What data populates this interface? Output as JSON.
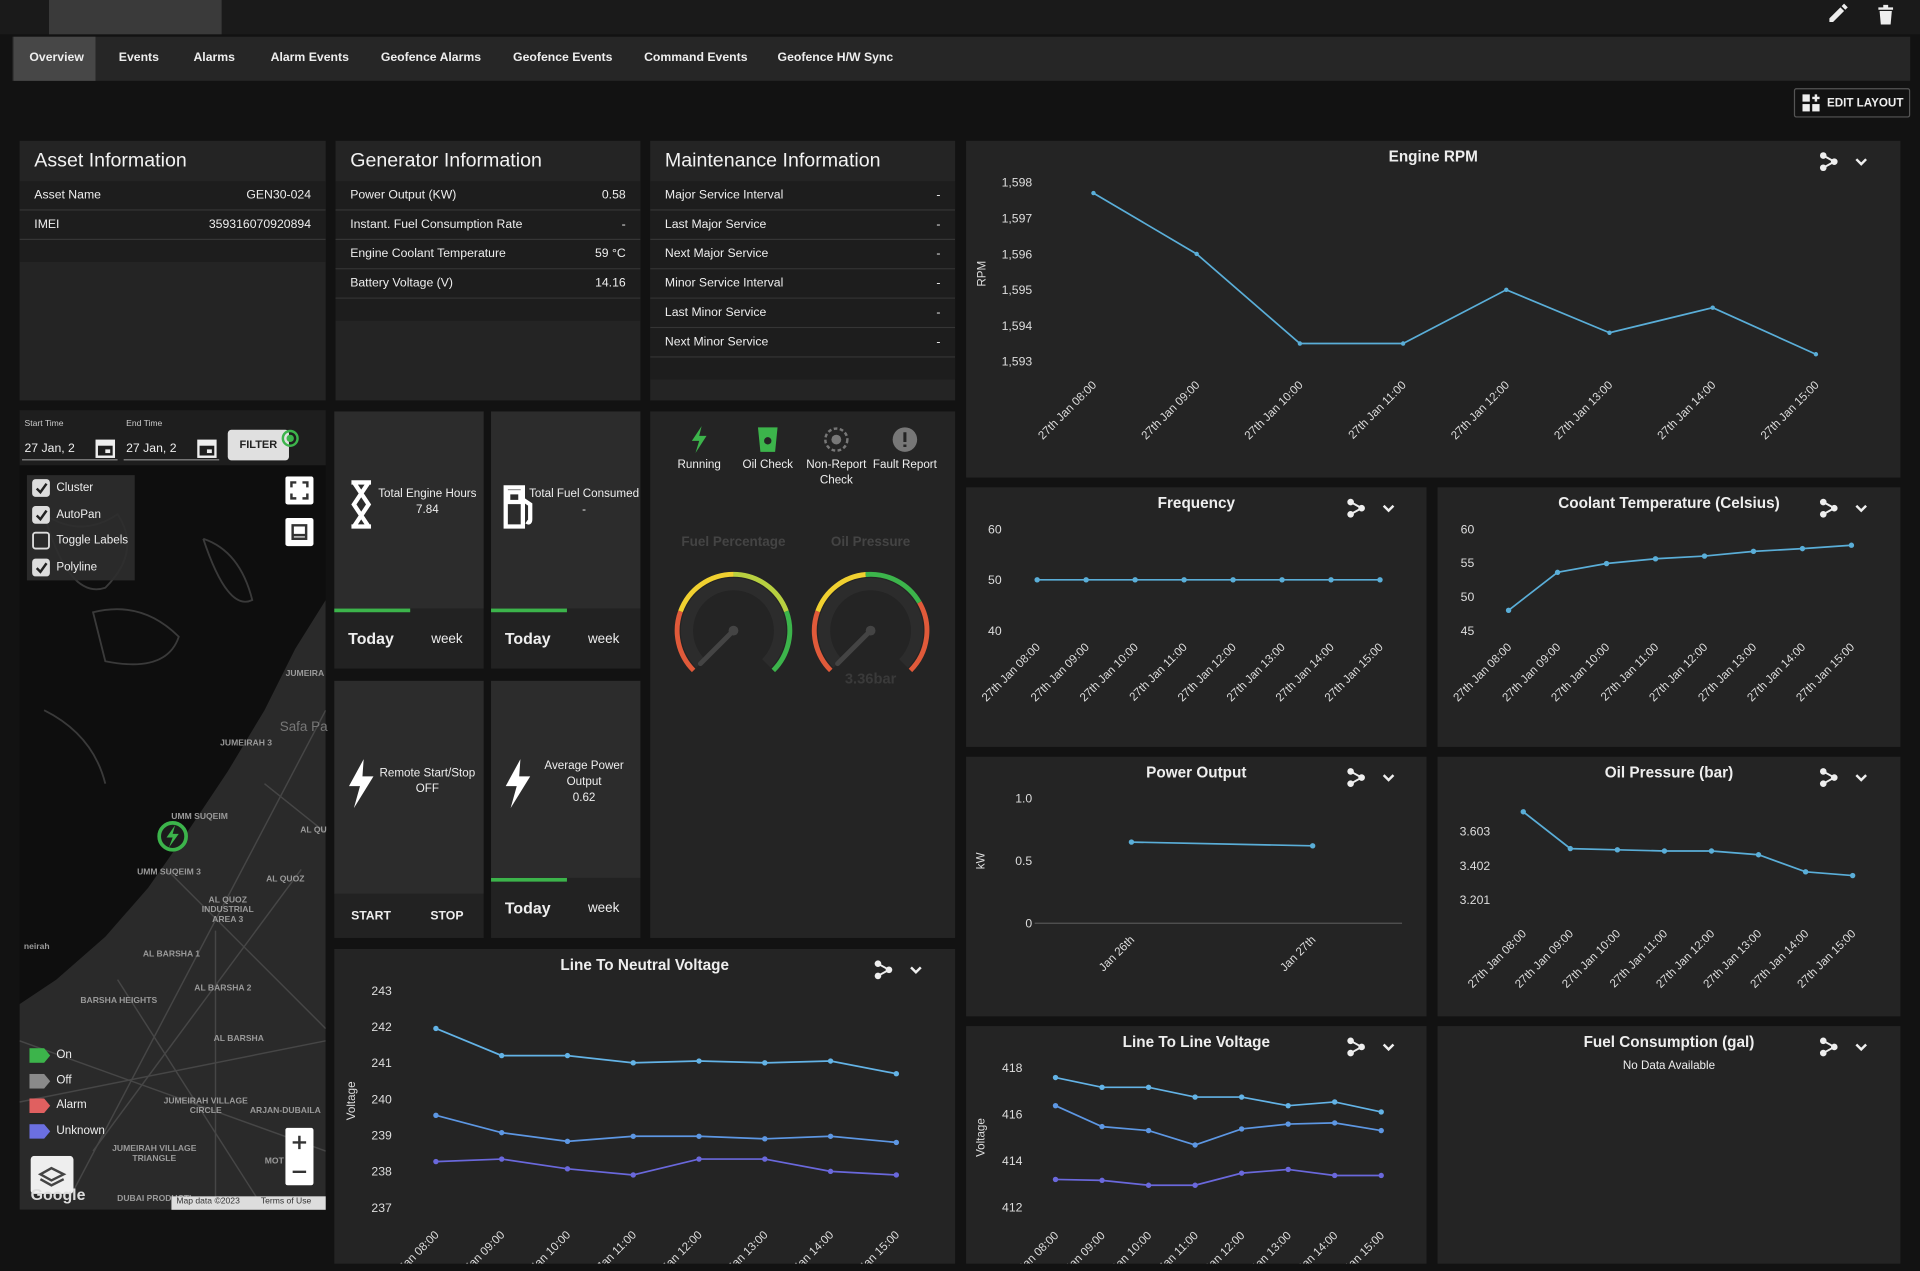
{
  "top_tabs": [
    "Overview",
    "Events",
    "Alarms",
    "Alarm Events",
    "Geofence Alarms",
    "Geofence Events",
    "Command Events",
    "Geofence H/W Sync"
  ],
  "edit_layout": "EDIT LAYOUT",
  "asset_info": {
    "title": "Asset Information",
    "rows": [
      [
        "Asset Name",
        "GEN30-024"
      ],
      [
        "IMEI",
        "359316070920894"
      ]
    ]
  },
  "generator_info": {
    "title": "Generator Information",
    "rows": [
      [
        "Power Output (KW)",
        0.58
      ],
      [
        "Instant. Fuel Consumption Rate",
        "-"
      ],
      [
        "Engine Coolant Temperature",
        "59 °C"
      ],
      [
        "Battery Voltage (V)",
        14.16
      ]
    ]
  },
  "maintenance_info": {
    "title": "Maintenance Information",
    "rows": [
      [
        "Major Service Interval",
        "-"
      ],
      [
        "Last Major Service",
        "-"
      ],
      [
        "Next Major Service",
        "-"
      ],
      [
        "Minor Service Interval",
        "-"
      ],
      [
        "Last Minor Service",
        "-"
      ],
      [
        "Next Minor Service",
        "-"
      ]
    ]
  },
  "map": {
    "start_label": "Start Time",
    "start_value": "27 Jan, 2",
    "end_label": "End Time",
    "end_value": "27 Jan, 2",
    "filter": "FILTER",
    "layers": [
      {
        "label": "Cluster",
        "checked": true
      },
      {
        "label": "AutoPan",
        "checked": true
      },
      {
        "label": "Toggle Labels",
        "checked": false
      },
      {
        "label": "Polyline",
        "checked": true
      }
    ],
    "places": [
      "JUMEIRA",
      "Safa Pa",
      "JUMEIRAH 3",
      "UMM SUQEIM",
      "AL QU",
      "UMM SUQEIM 3",
      "AL QUOZ",
      "AL QUOZ INDUSTRIAL AREA 3",
      "AL BARSHA 1",
      "AL BARSHA 2",
      "BARSHA HEIGHTS",
      "AL BARSHA",
      "neirah",
      "JUMEIRAH VILLAGE CIRCLE",
      "ARJAN-DUBAILA",
      "JUMEIRAH VILLAGE TRIANGLE",
      "MOT",
      "DUBAI PRODUCTI"
    ],
    "legend": [
      {
        "label": "On",
        "color": "#3cb44b"
      },
      {
        "label": "Off",
        "color": "#8a8a8a"
      },
      {
        "label": "Alarm",
        "color": "#e06060"
      },
      {
        "label": "Unknown",
        "color": "#6b6fe0"
      }
    ],
    "logo": "Google",
    "attribution": "Map data ©2023",
    "terms": "Terms of Use"
  },
  "tiles": [
    {
      "label": "Total Engine Hours",
      "value": 7.84,
      "options": [
        "Today",
        "week"
      ],
      "selected": 0
    },
    {
      "label": "Total Fuel Consumed",
      "value": "-",
      "options": [
        "Today",
        "week"
      ],
      "selected": 0
    },
    {
      "label": "Remote Start/Stop",
      "value": "OFF",
      "options": [
        "START",
        "STOP"
      ]
    },
    {
      "label": "Average Power Output",
      "value": 0.62,
      "options": [
        "Today",
        "week"
      ],
      "selected": 0
    }
  ],
  "status": {
    "checks": [
      {
        "label": "Running",
        "color": "#3cb44b"
      },
      {
        "label": "Oil Check",
        "color": "#3cb44b"
      },
      {
        "label": "Non-Report Check",
        "color": "#777"
      },
      {
        "label": "Fault Report",
        "color": "#777"
      }
    ],
    "gauges": [
      {
        "title": "Fuel Percentage"
      },
      {
        "title": "Oil Pressure",
        "value_label": "3.36bar"
      }
    ]
  },
  "chart_data": [
    {
      "type": "line",
      "title": "Engine RPM",
      "y_label": "RPM",
      "categories": [
        "27th Jan 08:00",
        "27th Jan 09:00",
        "27th Jan 10:00",
        "27th Jan 11:00",
        "27th Jan 12:00",
        "27th Jan 13:00",
        "27th Jan 14:00",
        "27th Jan 15:00"
      ],
      "series": [
        {
          "color": "#5aaed8",
          "values": [
            1597.7,
            1596.0,
            1593.5,
            1593.5,
            1595.0,
            1593.8,
            1594.5,
            1593.2
          ]
        }
      ],
      "ylim": [
        1592.8,
        1598.1
      ],
      "yticks": [
        {
          "value": 1593,
          "label": "1,593"
        },
        {
          "value": 1594,
          "label": "1,594"
        },
        {
          "value": 1595,
          "label": "1,595"
        },
        {
          "value": 1596,
          "label": "1,596"
        },
        {
          "value": 1597,
          "label": "1,597"
        },
        {
          "value": 1598,
          "label": "1,598"
        }
      ]
    },
    {
      "type": "line",
      "title": "Frequency",
      "categories": [
        "27th Jan 08:00",
        "27th Jan 09:00",
        "27th Jan 10:00",
        "27th Jan 11:00",
        "27th Jan 12:00",
        "27th Jan 13:00",
        "27th Jan 14:00",
        "27th Jan 15:00"
      ],
      "series": [
        {
          "color": "#5aaed8",
          "values": [
            50,
            50,
            50,
            50,
            50,
            50,
            50,
            50
          ]
        }
      ],
      "ylim": [
        40,
        60
      ],
      "yticks": [
        40,
        50,
        60
      ]
    },
    {
      "type": "line",
      "title": "Coolant Temperature (Celsius)",
      "categories": [
        "27th Jan 08:00",
        "27th Jan 09:00",
        "27th Jan 10:00",
        "27th Jan 11:00",
        "27th Jan 12:00",
        "27th Jan 13:00",
        "27th Jan 14:00",
        "27th Jan 15:00"
      ],
      "series": [
        {
          "color": "#5aaed8",
          "values": [
            48.0,
            53.6,
            54.9,
            55.6,
            56.0,
            56.7,
            57.1,
            57.6
          ]
        }
      ],
      "ylim": [
        45,
        60
      ],
      "yticks": [
        45,
        50,
        55,
        60
      ]
    },
    {
      "type": "line",
      "title": "Power Output",
      "y_label": "kW",
      "categories": [
        "Jan 26th",
        "Jan 27th"
      ],
      "series": [
        {
          "color": "#5aaed8",
          "values": [
            0.65,
            0.62
          ]
        }
      ],
      "ylim": [
        0,
        1
      ],
      "yticks": [
        0,
        0.5,
        {
          "value": 1,
          "label": "1.0"
        }
      ]
    },
    {
      "type": "line",
      "title": "Oil Pressure (bar)",
      "categories": [
        "27th Jan 08:00",
        "27th Jan 09:00",
        "27th Jan 10:00",
        "27th Jan 11:00",
        "27th Jan 12:00",
        "27th Jan 13:00",
        "27th Jan 14:00",
        "27th Jan 15:00"
      ],
      "series": [
        {
          "color": "#5aaed8",
          "values": [
            3.718,
            3.502,
            3.495,
            3.488,
            3.488,
            3.466,
            3.366,
            3.344
          ]
        }
      ],
      "ylim": [
        3.1,
        3.75
      ],
      "yticks": [
        3.201,
        3.402,
        3.603
      ]
    },
    {
      "type": "line",
      "title": "Line To Neutral Voltage",
      "y_label": "Voltage",
      "categories": [
        "27th Jan 08:00",
        "27th Jan 09:00",
        "27th Jan 10:00",
        "27th Jan 11:00",
        "27th Jan 12:00",
        "27th Jan 13:00",
        "27th Jan 14:00",
        "27th Jan 15:00"
      ],
      "series": [
        {
          "color": "#63b3e6",
          "values": [
            241.95,
            241.2,
            241.2,
            241.0,
            241.05,
            241.0,
            241.05,
            240.7
          ]
        },
        {
          "color": "#5d97e3",
          "values": [
            239.55,
            239.07,
            238.83,
            238.97,
            238.97,
            238.9,
            238.97,
            238.8
          ]
        },
        {
          "color": "#6a68dc",
          "values": [
            238.27,
            238.34,
            238.07,
            237.9,
            238.34,
            238.34,
            238.0,
            237.9
          ]
        }
      ],
      "ylim": [
        236.7,
        243.2
      ],
      "yticks": [
        237,
        238,
        239,
        240,
        241,
        242,
        243
      ]
    },
    {
      "type": "line",
      "title": "Line To Line Voltage",
      "y_label": "Voltage",
      "categories": [
        "27th Jan 08:00",
        "27th Jan 09:00",
        "27th Jan 10:00",
        "27th Jan 11:00",
        "27th Jan 12:00",
        "27th Jan 13:00",
        "27th Jan 14:00",
        "27th Jan 15:00"
      ],
      "series": [
        {
          "color": "#63b3e6",
          "values": [
            417.58,
            417.16,
            417.16,
            416.74,
            416.74,
            416.37,
            416.53,
            416.1
          ]
        },
        {
          "color": "#5d97e3",
          "values": [
            416.37,
            415.47,
            415.3,
            414.68,
            415.37,
            415.58,
            415.63,
            415.3
          ]
        },
        {
          "color": "#6a68dc",
          "values": [
            413.2,
            413.16,
            412.95,
            412.95,
            413.47,
            413.63,
            413.37,
            413.37
          ]
        }
      ],
      "ylim": [
        411.5,
        418.5
      ],
      "yticks": [
        412,
        414,
        416,
        418
      ]
    },
    {
      "type": "line",
      "title": "Fuel Consumption (gal)",
      "message": "No Data Available"
    }
  ]
}
